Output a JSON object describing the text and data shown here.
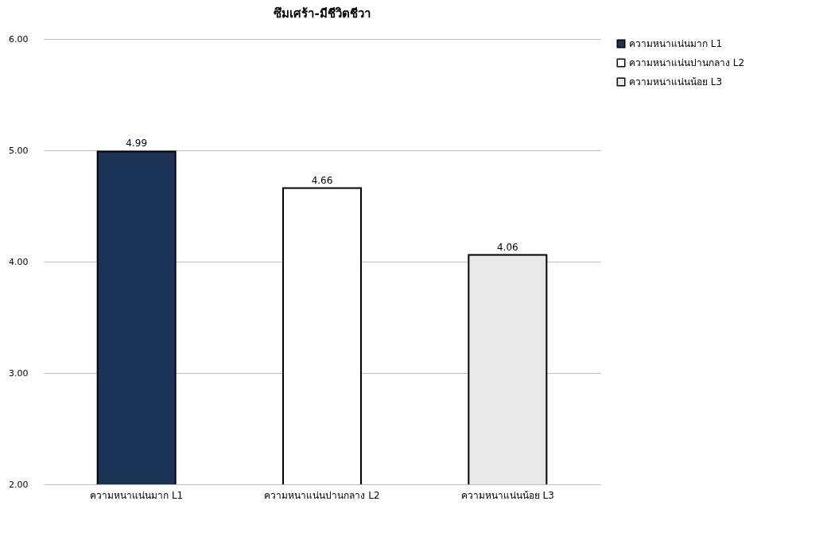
{
  "chart_data": {
    "type": "bar",
    "title": "ซึมเศร้า-มีชีวิตชีวา",
    "categories": [
      "ความหนาแน่นมาก L1",
      "ความหนาแน่นปานกลาง L2",
      "ความหนาแน่นน้อย L3"
    ],
    "series": [
      {
        "name": "ความหนาแน่นมาก L1",
        "color": "#1a3357",
        "values": [
          4.99,
          null,
          null
        ]
      },
      {
        "name": "ความหนาแน่นปานกลาง L2",
        "color": "#ffffff",
        "values": [
          null,
          4.66,
          null
        ]
      },
      {
        "name": "ความหนาแน่นน้อย L3",
        "color": "#e8e8e8",
        "values": [
          null,
          null,
          4.06
        ]
      }
    ],
    "ylim": [
      2,
      6
    ],
    "yticks": [
      {
        "value": 2,
        "label": "2.00"
      },
      {
        "value": 3,
        "label": "3.00"
      },
      {
        "value": 4,
        "label": "4.00"
      },
      {
        "value": 5,
        "label": "5.00"
      },
      {
        "value": 6,
        "label": "6.00"
      }
    ],
    "grid": "y",
    "legend": "right",
    "data_labels": true
  }
}
